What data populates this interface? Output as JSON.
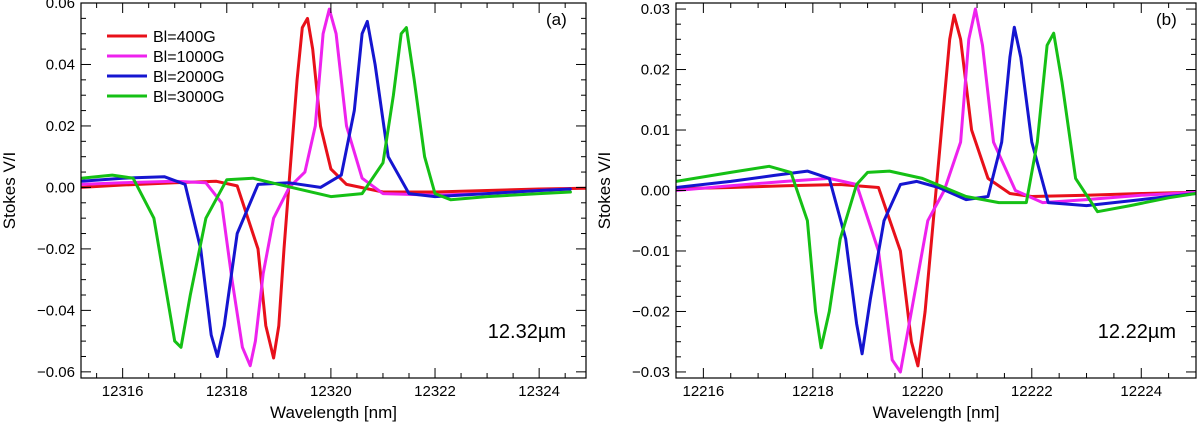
{
  "chart_data": [
    {
      "type": "line",
      "panel_label": "(a)",
      "annotation": "12.32µm",
      "xlabel": "Wavelength [nm]",
      "ylabel": "Stokes V/I",
      "xlim": [
        12315.2,
        12324.9
      ],
      "ylim": [
        -0.062,
        0.06
      ],
      "xticks": [
        12316,
        12318,
        12320,
        12322,
        12324
      ],
      "xtick_labels": [
        "12316",
        "12318",
        "12320",
        "12322",
        "12324"
      ],
      "yticks": [
        -0.06,
        -0.04,
        -0.02,
        0.0,
        0.02,
        0.04,
        0.06
      ],
      "ytick_labels": [
        "−0.06",
        "−0.04",
        "−0.02",
        "0.00",
        "0.02",
        "0.04",
        "0.06"
      ],
      "legend": [
        "Bl=400G",
        "Bl=1000G",
        "Bl=2000G",
        "Bl=3000G"
      ],
      "series": [
        {
          "name": "Bl=400G",
          "color": "#e8101a",
          "x": [
            12315.2,
            12316.0,
            12317.0,
            12317.8,
            12318.2,
            12318.6,
            12318.75,
            12318.9,
            12319.0,
            12319.1,
            12319.2,
            12319.35,
            12319.45,
            12319.55,
            12319.65,
            12319.8,
            12320.0,
            12320.3,
            12321.0,
            12322.0,
            12323.0,
            12324.0,
            12324.9
          ],
          "y": [
            0.0,
            0.0008,
            0.0015,
            0.002,
            0.0005,
            -0.02,
            -0.045,
            -0.0555,
            -0.045,
            -0.02,
            0.002,
            0.035,
            0.052,
            0.055,
            0.045,
            0.02,
            0.006,
            0.001,
            -0.0015,
            -0.0015,
            -0.001,
            -0.0005,
            -0.0003
          ]
        },
        {
          "name": "Bl=1000G",
          "color": "#ee22ee",
          "x": [
            12315.2,
            12316.0,
            12317.0,
            12317.6,
            12317.9,
            12318.1,
            12318.3,
            12318.45,
            12318.55,
            12318.7,
            12318.9,
            12319.2,
            12319.5,
            12319.7,
            12319.85,
            12319.97,
            12320.1,
            12320.3,
            12320.6,
            12321.0,
            12322.0,
            12323.0,
            12324.0,
            12324.6
          ],
          "y": [
            0.001,
            0.0015,
            0.002,
            0.0015,
            -0.005,
            -0.03,
            -0.052,
            -0.058,
            -0.05,
            -0.028,
            -0.01,
            0.0,
            0.005,
            0.02,
            0.05,
            0.058,
            0.05,
            0.02,
            0.003,
            -0.002,
            -0.0025,
            -0.002,
            -0.001,
            -0.0005
          ]
        },
        {
          "name": "Bl=2000G",
          "color": "#1515d0",
          "x": [
            12315.2,
            12316.0,
            12316.8,
            12317.2,
            12317.5,
            12317.7,
            12317.82,
            12317.95,
            12318.2,
            12318.6,
            12319.2,
            12319.8,
            12320.2,
            12320.45,
            12320.6,
            12320.7,
            12320.85,
            12321.1,
            12321.5,
            12322.0,
            12323.0,
            12324.0,
            12324.6
          ],
          "y": [
            0.002,
            0.003,
            0.0035,
            0.001,
            -0.02,
            -0.048,
            -0.055,
            -0.045,
            -0.015,
            0.001,
            0.0015,
            0.0,
            0.004,
            0.025,
            0.05,
            0.054,
            0.04,
            0.01,
            -0.002,
            -0.003,
            -0.002,
            -0.001,
            -0.0005
          ]
        },
        {
          "name": "Bl=3000G",
          "color": "#15c015",
          "x": [
            12315.2,
            12315.8,
            12316.2,
            12316.6,
            12316.85,
            12317.0,
            12317.12,
            12317.3,
            12317.6,
            12318.0,
            12318.5,
            12319.0,
            12320.0,
            12320.6,
            12321.0,
            12321.2,
            12321.35,
            12321.45,
            12321.6,
            12321.8,
            12322.0,
            12322.3,
            12323.0,
            12324.0,
            12324.6
          ],
          "y": [
            0.003,
            0.004,
            0.003,
            -0.01,
            -0.035,
            -0.05,
            -0.052,
            -0.035,
            -0.01,
            0.0025,
            0.003,
            0.001,
            -0.003,
            -0.002,
            0.008,
            0.03,
            0.05,
            0.052,
            0.035,
            0.01,
            -0.002,
            -0.004,
            -0.003,
            -0.002,
            -0.0015
          ]
        }
      ]
    },
    {
      "type": "line",
      "panel_label": "(b)",
      "annotation": "12.22µm",
      "xlabel": "Wavelength [nm]",
      "ylabel": "Stokes V/I",
      "xlim": [
        12215.5,
        12225.0
      ],
      "ylim": [
        -0.031,
        0.031
      ],
      "xticks": [
        12216,
        12218,
        12220,
        12222,
        12224
      ],
      "xtick_labels": [
        "12216",
        "12218",
        "12220",
        "12222",
        "12224"
      ],
      "yticks": [
        -0.03,
        -0.02,
        -0.01,
        0.0,
        0.01,
        0.02,
        0.03
      ],
      "ytick_labels": [
        "−0.03",
        "−0.02",
        "−0.01",
        "0.00",
        "0.01",
        "0.02",
        "0.03"
      ],
      "series": [
        {
          "name": "Bl=400G",
          "color": "#e8101a",
          "x": [
            12215.5,
            12216.5,
            12217.5,
            12218.5,
            12219.2,
            12219.6,
            12219.8,
            12219.92,
            12220.05,
            12220.2,
            12220.35,
            12220.5,
            12220.58,
            12220.7,
            12220.9,
            12221.2,
            12221.6,
            12222.0,
            12223.0,
            12224.0,
            12225.0
          ],
          "y": [
            0.0003,
            0.0005,
            0.0008,
            0.001,
            0.0005,
            -0.01,
            -0.025,
            -0.029,
            -0.02,
            -0.005,
            0.01,
            0.025,
            0.029,
            0.025,
            0.01,
            0.002,
            -0.0005,
            -0.001,
            -0.0008,
            -0.0005,
            -0.0003
          ]
        },
        {
          "name": "Bl=1000G",
          "color": "#ee22ee",
          "x": [
            12215.5,
            12216.5,
            12217.5,
            12218.3,
            12218.8,
            12219.2,
            12219.45,
            12219.6,
            12219.8,
            12220.1,
            12220.4,
            12220.7,
            12220.85,
            12220.97,
            12221.1,
            12221.3,
            12221.7,
            12222.2,
            12223.0,
            12224.0,
            12225.0
          ],
          "y": [
            0.0,
            0.0008,
            0.0015,
            0.002,
            0.001,
            -0.01,
            -0.028,
            -0.03,
            -0.02,
            -0.005,
            0.0,
            0.008,
            0.025,
            0.03,
            0.024,
            0.008,
            0.0,
            -0.002,
            -0.0015,
            -0.0008,
            -0.0003
          ]
        },
        {
          "name": "Bl=2000G",
          "color": "#1515d0",
          "x": [
            12215.5,
            12216.5,
            12217.3,
            12217.9,
            12218.3,
            12218.6,
            12218.8,
            12218.9,
            12219.05,
            12219.3,
            12219.6,
            12219.9,
            12220.3,
            12220.8,
            12221.2,
            12221.45,
            12221.6,
            12221.68,
            12221.8,
            12222.0,
            12222.3,
            12223.0,
            12224.0,
            12225.0
          ],
          "y": [
            0.0005,
            0.0015,
            0.0025,
            0.0032,
            0.002,
            -0.008,
            -0.022,
            -0.027,
            -0.018,
            -0.005,
            0.001,
            0.0015,
            0.0005,
            -0.0015,
            -0.001,
            0.008,
            0.022,
            0.027,
            0.022,
            0.008,
            -0.002,
            -0.0025,
            -0.0015,
            -0.0005
          ]
        },
        {
          "name": "Bl=3000G",
          "color": "#15c015",
          "x": [
            12215.5,
            12216.5,
            12217.2,
            12217.6,
            12217.9,
            12218.05,
            12218.15,
            12218.3,
            12218.5,
            12218.8,
            12219.0,
            12219.4,
            12220.0,
            12220.8,
            12221.4,
            12221.9,
            12222.1,
            12222.28,
            12222.4,
            12222.55,
            12222.8,
            12223.2,
            12223.8,
            12224.5,
            12225.0
          ],
          "y": [
            0.0015,
            0.003,
            0.004,
            0.003,
            -0.005,
            -0.02,
            -0.026,
            -0.02,
            -0.008,
            0.001,
            0.003,
            0.0032,
            0.002,
            -0.001,
            -0.002,
            -0.002,
            0.008,
            0.024,
            0.026,
            0.018,
            0.002,
            -0.0035,
            -0.0025,
            -0.0012,
            -0.0005
          ]
        }
      ]
    }
  ]
}
